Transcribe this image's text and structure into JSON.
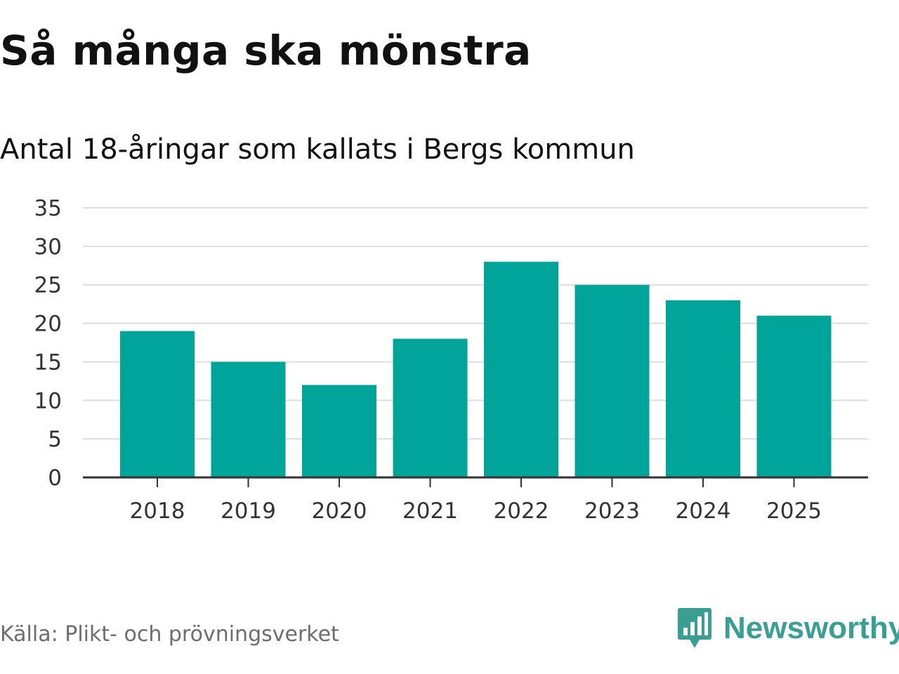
{
  "title": "Så många ska mönstra",
  "subtitle": "Antal 18-åringar som kallats i Bergs kommun",
  "source": "Källa: Plikt- och prövningsverket",
  "brand": {
    "name": "Newsworthy",
    "icon": "newsworthy-logo-icon",
    "color": "#3a9f93"
  },
  "colors": {
    "bar": "#00a499",
    "grid": "#dddddd",
    "axis": "#333333"
  },
  "chart_data": {
    "type": "bar",
    "title": "Så många ska mönstra",
    "subtitle": "Antal 18-åringar som kallats i Bergs kommun",
    "categories": [
      "2018",
      "2019",
      "2020",
      "2021",
      "2022",
      "2023",
      "2024",
      "2025"
    ],
    "values": [
      19,
      15,
      12,
      18,
      28,
      25,
      23,
      21
    ],
    "xlabel": "",
    "ylabel": "",
    "ylim": [
      0,
      35
    ],
    "yticks": [
      0,
      5,
      10,
      15,
      20,
      25,
      30,
      35
    ],
    "grid": true,
    "legend": "none"
  }
}
